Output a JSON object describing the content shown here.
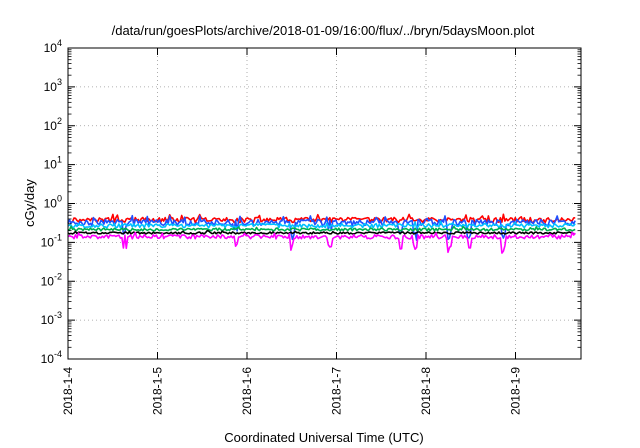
{
  "chart_data": {
    "type": "line",
    "title": "/data/run/goesPlots/archive/2018-01-09/16:00/flux/../bryn/5daysMoon.plot",
    "xlabel": "Coordinated Universal Time (UTC)",
    "ylabel": "cGy/day",
    "yscale": "log",
    "ylim": [
      0.0001,
      10000
    ],
    "xlim": [
      "2018-01-04",
      "2018-01-09 16:00"
    ],
    "x_ticks": [
      "2018-1-4",
      "2018-1-5",
      "2018-1-6",
      "2018-1-7",
      "2018-1-8",
      "2018-1-9"
    ],
    "y_ticks": [
      {
        "base": "10",
        "exp": "-4",
        "value": 0.0001
      },
      {
        "base": "10",
        "exp": "-3",
        "value": 0.001
      },
      {
        "base": "10",
        "exp": "-2",
        "value": 0.01
      },
      {
        "base": "10",
        "exp": "-1",
        "value": 0.1
      },
      {
        "base": "10",
        "exp": "0",
        "value": 1
      },
      {
        "base": "10",
        "exp": "1",
        "value": 10
      },
      {
        "base": "10",
        "exp": "2",
        "value": 100
      },
      {
        "base": "10",
        "exp": "3",
        "value": 1000
      },
      {
        "base": "10",
        "exp": "4",
        "value": 10000
      }
    ],
    "grid": true,
    "series": [
      {
        "color": "#ff0000",
        "level": 0.38,
        "noise": 0.15,
        "dips": false
      },
      {
        "color": "#1e50ff",
        "level": 0.33,
        "noise": 0.18,
        "dips": true
      },
      {
        "color": "#00c0ff",
        "level": 0.27,
        "noise": 0.12,
        "dips": false
      },
      {
        "color": "#00b050",
        "level": 0.215,
        "noise": 0.08,
        "dips": false
      },
      {
        "color": "#000000",
        "level": 0.175,
        "noise": 0.06,
        "dips": false
      },
      {
        "color": "#ff00ff",
        "level": 0.14,
        "noise": 0.12,
        "dips": true
      }
    ]
  }
}
